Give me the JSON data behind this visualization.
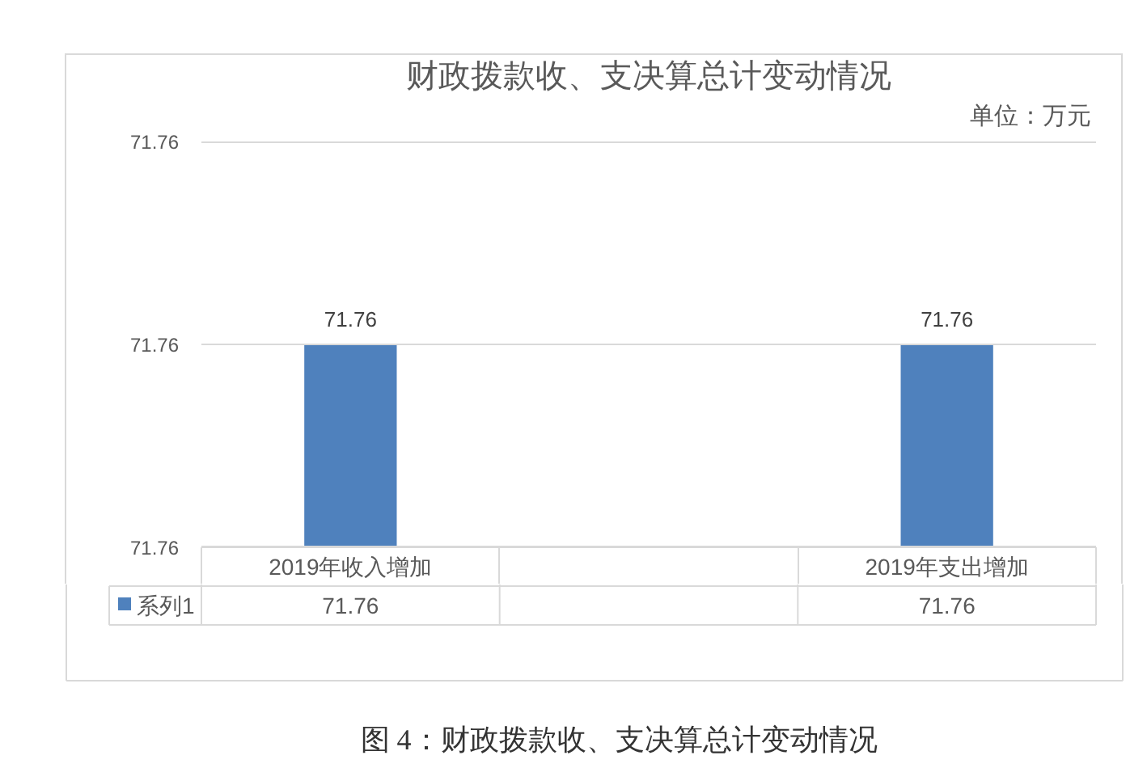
{
  "chart_data": {
    "type": "bar",
    "title": "财政拨款收、支决算总计变动情况",
    "categories": [
      "2019年收入增加",
      null,
      "2019年支出增加"
    ],
    "series": [
      {
        "name": "系列1",
        "color": "#4f81bd",
        "values": [
          71.76,
          null,
          71.76
        ]
      }
    ],
    "ylim": [
      71.759,
      71.761
    ],
    "yticks": [
      {
        "value": 71.759,
        "label": "71.76"
      },
      71.76,
      {
        "value": 71.761,
        "label": "71.76"
      }
    ],
    "grid": "y",
    "legend": "bottom",
    "data_labels": true,
    "annotations": [
      "单位：万元",
      "图 4：财政拨款收、支决算总计变动情况",
      {
        "text": "71.76",
        "x": "2019年收入增加",
        "y": 71.76
      },
      {
        "text": "71.76",
        "x": "2019年支出增加",
        "y": 71.76
      }
    ]
  }
}
